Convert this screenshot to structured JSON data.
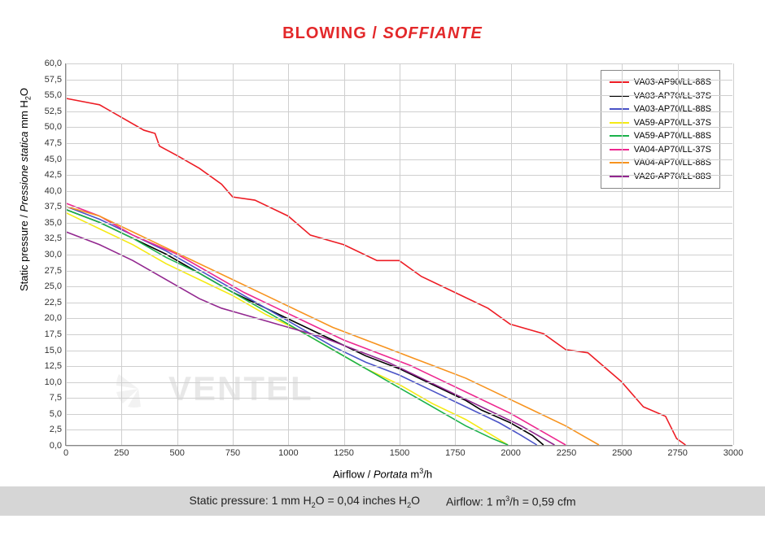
{
  "title": {
    "main": "BLOWING",
    "separator": " / ",
    "italic": "SOFFIANTE",
    "color": "#e3282a",
    "fontsize": 20
  },
  "chart": {
    "type": "line",
    "background_color": "#ffffff",
    "grid_color": "#cfcfcf",
    "axis_color": "#888888",
    "xlim": [
      0,
      3000
    ],
    "ylim": [
      0,
      60
    ],
    "xtick_step": 250,
    "ytick_step": 2.5,
    "ylabel_plain": "Static pressure",
    "ylabel_sep": " / ",
    "ylabel_italic": "Pressione statica",
    "ylabel_unit_prefix": "  mm  H",
    "ylabel_unit_sub": "2",
    "ylabel_unit_suffix": "O",
    "xlabel_plain": "Airflow",
    "xlabel_sep": " / ",
    "xlabel_italic": "Portata",
    "xlabel_unit_prefix": "  m",
    "xlabel_unit_sup": "3",
    "xlabel_unit_suffix": "/h",
    "line_width": 1.6,
    "tick_fontsize": 11,
    "label_fontsize": 13,
    "series": [
      {
        "name": "VA03-AP90/LL-88S",
        "color": "#ed1c24",
        "points": [
          [
            0,
            54.5
          ],
          [
            150,
            53.5
          ],
          [
            250,
            51.5
          ],
          [
            350,
            49.5
          ],
          [
            400,
            49.0
          ],
          [
            420,
            47.0
          ],
          [
            500,
            45.5
          ],
          [
            600,
            43.5
          ],
          [
            700,
            41.0
          ],
          [
            750,
            39.0
          ],
          [
            850,
            38.5
          ],
          [
            1000,
            36.0
          ],
          [
            1100,
            33.0
          ],
          [
            1250,
            31.5
          ],
          [
            1400,
            29.0
          ],
          [
            1500,
            29.0
          ],
          [
            1600,
            26.5
          ],
          [
            1750,
            24.0
          ],
          [
            1900,
            21.5
          ],
          [
            2000,
            19.0
          ],
          [
            2150,
            17.5
          ],
          [
            2250,
            15.0
          ],
          [
            2350,
            14.5
          ],
          [
            2500,
            10.0
          ],
          [
            2600,
            6.0
          ],
          [
            2700,
            4.5
          ],
          [
            2750,
            1.0
          ],
          [
            2790,
            0.0
          ]
        ]
      },
      {
        "name": "VA03-AP70/LL-37S",
        "color": "#000000",
        "points": [
          [
            0,
            37.0
          ],
          [
            150,
            35.0
          ],
          [
            300,
            32.5
          ],
          [
            450,
            30.0
          ],
          [
            600,
            27.0
          ],
          [
            750,
            24.0
          ],
          [
            900,
            21.5
          ],
          [
            1050,
            19.0
          ],
          [
            1200,
            16.5
          ],
          [
            1350,
            14.0
          ],
          [
            1500,
            12.0
          ],
          [
            1650,
            9.5
          ],
          [
            1800,
            7.0
          ],
          [
            1870,
            5.5
          ],
          [
            2000,
            3.5
          ],
          [
            2100,
            1.5
          ],
          [
            2150,
            0.0
          ]
        ]
      },
      {
        "name": "VA03-AP70/LL-88S",
        "color": "#4a53c7",
        "points": [
          [
            0,
            37.5
          ],
          [
            150,
            35.5
          ],
          [
            300,
            33.0
          ],
          [
            450,
            30.5
          ],
          [
            600,
            27.5
          ],
          [
            750,
            24.5
          ],
          [
            900,
            21.5
          ],
          [
            1050,
            18.5
          ],
          [
            1200,
            15.5
          ],
          [
            1350,
            13.0
          ],
          [
            1500,
            11.0
          ],
          [
            1650,
            8.5
          ],
          [
            1800,
            6.0
          ],
          [
            1950,
            3.5
          ],
          [
            2050,
            1.5
          ],
          [
            2120,
            0.0
          ]
        ]
      },
      {
        "name": "VA59-AP70/LL-37S",
        "color": "#f5ea14",
        "points": [
          [
            0,
            36.5
          ],
          [
            150,
            34.0
          ],
          [
            300,
            31.5
          ],
          [
            450,
            28.5
          ],
          [
            600,
            26.0
          ],
          [
            750,
            23.5
          ],
          [
            900,
            20.5
          ],
          [
            1050,
            18.0
          ],
          [
            1200,
            15.0
          ],
          [
            1350,
            12.0
          ],
          [
            1500,
            9.5
          ],
          [
            1650,
            6.5
          ],
          [
            1800,
            4.0
          ],
          [
            1920,
            1.5
          ],
          [
            1990,
            0.0
          ]
        ]
      },
      {
        "name": "VA59-AP70/LL-88S",
        "color": "#1bb24b",
        "points": [
          [
            0,
            37.0
          ],
          [
            150,
            35.0
          ],
          [
            300,
            32.5
          ],
          [
            450,
            29.5
          ],
          [
            600,
            27.0
          ],
          [
            750,
            24.0
          ],
          [
            900,
            21.0
          ],
          [
            1050,
            18.0
          ],
          [
            1200,
            15.0
          ],
          [
            1350,
            12.0
          ],
          [
            1500,
            9.0
          ],
          [
            1650,
            6.0
          ],
          [
            1800,
            3.0
          ],
          [
            1920,
            1.0
          ],
          [
            1990,
            0.0
          ]
        ]
      },
      {
        "name": "VA04-AP70/LL-37S",
        "color": "#ed2890",
        "points": [
          [
            0,
            38.0
          ],
          [
            150,
            36.0
          ],
          [
            300,
            33.0
          ],
          [
            400,
            31.5
          ],
          [
            500,
            30.0
          ],
          [
            650,
            27.0
          ],
          [
            800,
            24.0
          ],
          [
            950,
            21.5
          ],
          [
            1100,
            19.0
          ],
          [
            1250,
            16.5
          ],
          [
            1400,
            14.5
          ],
          [
            1550,
            12.5
          ],
          [
            1700,
            10.0
          ],
          [
            1850,
            7.5
          ],
          [
            2000,
            5.0
          ],
          [
            2100,
            3.0
          ],
          [
            2200,
            1.0
          ],
          [
            2250,
            0.0
          ]
        ]
      },
      {
        "name": "VA04-AP70/LL-88S",
        "color": "#f7931e",
        "points": [
          [
            0,
            37.5
          ],
          [
            150,
            36.0
          ],
          [
            300,
            33.5
          ],
          [
            450,
            31.0
          ],
          [
            600,
            28.5
          ],
          [
            750,
            26.0
          ],
          [
            900,
            23.5
          ],
          [
            1050,
            21.0
          ],
          [
            1200,
            18.5
          ],
          [
            1350,
            16.5
          ],
          [
            1500,
            14.5
          ],
          [
            1650,
            12.5
          ],
          [
            1800,
            10.5
          ],
          [
            1950,
            8.0
          ],
          [
            2100,
            5.5
          ],
          [
            2250,
            3.0
          ],
          [
            2350,
            1.0
          ],
          [
            2400,
            0.0
          ]
        ]
      },
      {
        "name": "VA26-AP70/LL-88S",
        "color": "#92278f",
        "points": [
          [
            0,
            33.5
          ],
          [
            150,
            31.5
          ],
          [
            300,
            29.0
          ],
          [
            400,
            27.0
          ],
          [
            500,
            25.0
          ],
          [
            600,
            23.0
          ],
          [
            700,
            21.5
          ],
          [
            850,
            20.0
          ],
          [
            1000,
            18.5
          ],
          [
            1150,
            17.0
          ],
          [
            1300,
            15.0
          ],
          [
            1450,
            13.0
          ],
          [
            1600,
            10.5
          ],
          [
            1750,
            8.0
          ],
          [
            1900,
            5.5
          ],
          [
            2050,
            3.0
          ],
          [
            2150,
            1.0
          ],
          [
            2200,
            0.0
          ]
        ]
      }
    ]
  },
  "watermark": {
    "text": "VENTEL",
    "color": "#d6d6d6"
  },
  "footer": {
    "bg_color": "#d6d6d6",
    "left_prefix": "Static pressure: 1 mm H",
    "left_sub": "2",
    "left_mid": "O = 0,04 inches H",
    "left_sub2": "2",
    "left_suffix": "O",
    "right_prefix": "Airflow: 1 m",
    "right_sup": "3",
    "right_suffix": "/h = 0,59 cfm"
  }
}
